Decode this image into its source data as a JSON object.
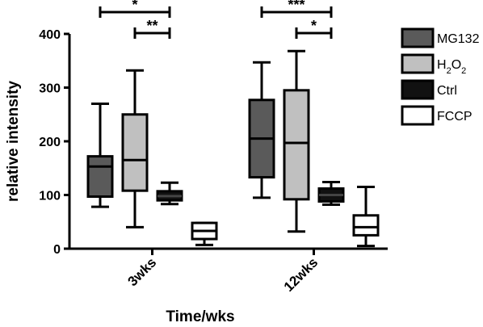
{
  "chart_data": {
    "type": "box",
    "ylabel": "relative intensity",
    "xlabel": "Time/wks",
    "ylim": [
      0,
      400
    ],
    "yticks": [
      0,
      100,
      200,
      300,
      400
    ],
    "categories": [
      "3wks",
      "12wks"
    ],
    "legend_position": "right",
    "series": [
      {
        "name": "MG132",
        "color": "#5a5a5a",
        "boxes": [
          {
            "min": 78,
            "q1": 97,
            "median": 153,
            "q3": 172,
            "max": 270
          },
          {
            "min": 95,
            "q1": 133,
            "median": 205,
            "q3": 277,
            "max": 347
          }
        ]
      },
      {
        "name": "H2O2",
        "name_main": "H",
        "name_sub": "2",
        "name_main2": "O",
        "name_sub2": "2",
        "color": "#c0c0c0",
        "boxes": [
          {
            "min": 40,
            "q1": 108,
            "median": 165,
            "q3": 250,
            "max": 332
          },
          {
            "min": 32,
            "q1": 92,
            "median": 197,
            "q3": 295,
            "max": 368
          }
        ]
      },
      {
        "name": "Ctrl",
        "color": "#111111",
        "boxes": [
          {
            "min": 83,
            "q1": 90,
            "median": 98,
            "q3": 107,
            "max": 123
          },
          {
            "min": 82,
            "q1": 88,
            "median": 100,
            "q3": 112,
            "max": 124
          }
        ]
      },
      {
        "name": "FCCP",
        "color": "#ffffff",
        "boxes": [
          {
            "min": 7,
            "q1": 18,
            "median": 33,
            "q3": 48,
            "max": 48
          },
          {
            "min": 5,
            "q1": 25,
            "median": 40,
            "q3": 62,
            "max": 115
          }
        ]
      }
    ],
    "annotations": [
      {
        "label": "*",
        "category": 0,
        "from_series": 0,
        "to_series": 2,
        "y": 445
      },
      {
        "label": "**",
        "category": 0,
        "from_series": 1,
        "to_series": 2,
        "y": 400
      },
      {
        "label": "***",
        "category": 1,
        "from_series": 0,
        "to_series": 2,
        "y": 445
      },
      {
        "label": "*",
        "category": 1,
        "from_series": 1,
        "to_series": 2,
        "y": 400
      }
    ]
  }
}
